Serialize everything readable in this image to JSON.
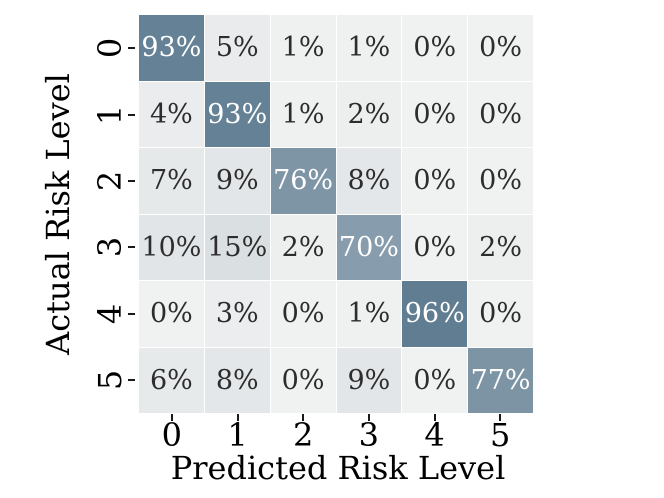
{
  "chart_data": {
    "type": "heatmap",
    "title": "",
    "xlabel": "Predicted Risk Level",
    "ylabel": "Actual Risk Level",
    "x_ticklabels": [
      "0",
      "1",
      "2",
      "3",
      "4",
      "5"
    ],
    "y_ticklabels": [
      "0",
      "1",
      "2",
      "3",
      "4",
      "5"
    ],
    "values": [
      [
        93,
        5,
        1,
        1,
        0,
        0
      ],
      [
        4,
        93,
        1,
        2,
        0,
        0
      ],
      [
        7,
        9,
        76,
        8,
        0,
        0
      ],
      [
        10,
        15,
        2,
        70,
        0,
        2
      ],
      [
        0,
        3,
        0,
        1,
        96,
        0
      ],
      [
        6,
        8,
        0,
        9,
        0,
        77
      ]
    ],
    "cell_labels": [
      [
        "93%",
        "5%",
        "1%",
        "1%",
        "0%",
        "0%"
      ],
      [
        "4%",
        "93%",
        "1%",
        "2%",
        "0%",
        "0%"
      ],
      [
        "7%",
        "9%",
        "76%",
        "8%",
        "0%",
        "0%"
      ],
      [
        "10%",
        "15%",
        "2%",
        "70%",
        "0%",
        "2%"
      ],
      [
        "0%",
        "3%",
        "0%",
        "1%",
        "96%",
        "0%"
      ],
      [
        "6%",
        "8%",
        "0%",
        "9%",
        "0%",
        "77%"
      ]
    ],
    "colormap": {
      "low": "#f0f1f1",
      "high": "#607d92",
      "vmin": 0,
      "vmax": 96
    },
    "annotation_dark_text": "#2d2d2d",
    "annotation_light_text": "#ffffff",
    "light_text_threshold": 40,
    "grid_gap_color": "#ffffff",
    "background": "#ffffff",
    "legend": "none",
    "grid": "off"
  }
}
